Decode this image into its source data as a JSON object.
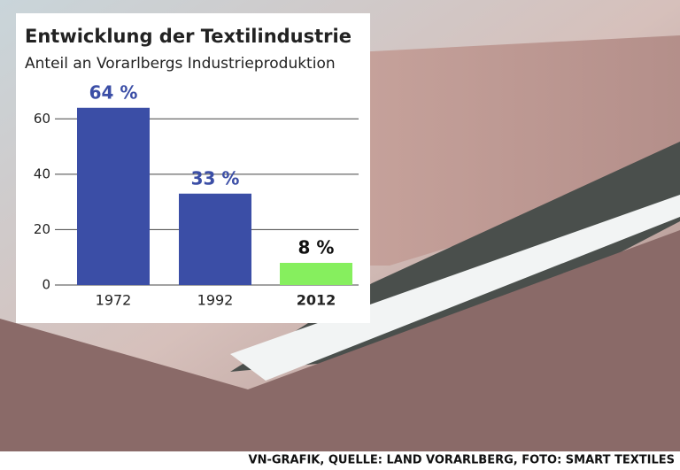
{
  "chart_data": {
    "type": "bar",
    "title": "Entwicklung der Textilindustrie",
    "subtitle": "Anteil an Vorarlbergs Industrieproduktion",
    "categories": [
      "1972",
      "1992",
      "2012"
    ],
    "values": [
      64,
      33,
      8
    ],
    "value_labels": [
      "64 %",
      "33 %",
      "8 %"
    ],
    "colors": [
      "#3b4ea6",
      "#3b4ea6",
      "#86ef5e"
    ],
    "ylim": [
      0,
      70
    ],
    "yticks": [
      0,
      20,
      40,
      60
    ],
    "grid": true,
    "source": "VN-GRAFIK, QUELLE: LAND VORARLBERG, FOTO: SMART TEXTILES"
  }
}
